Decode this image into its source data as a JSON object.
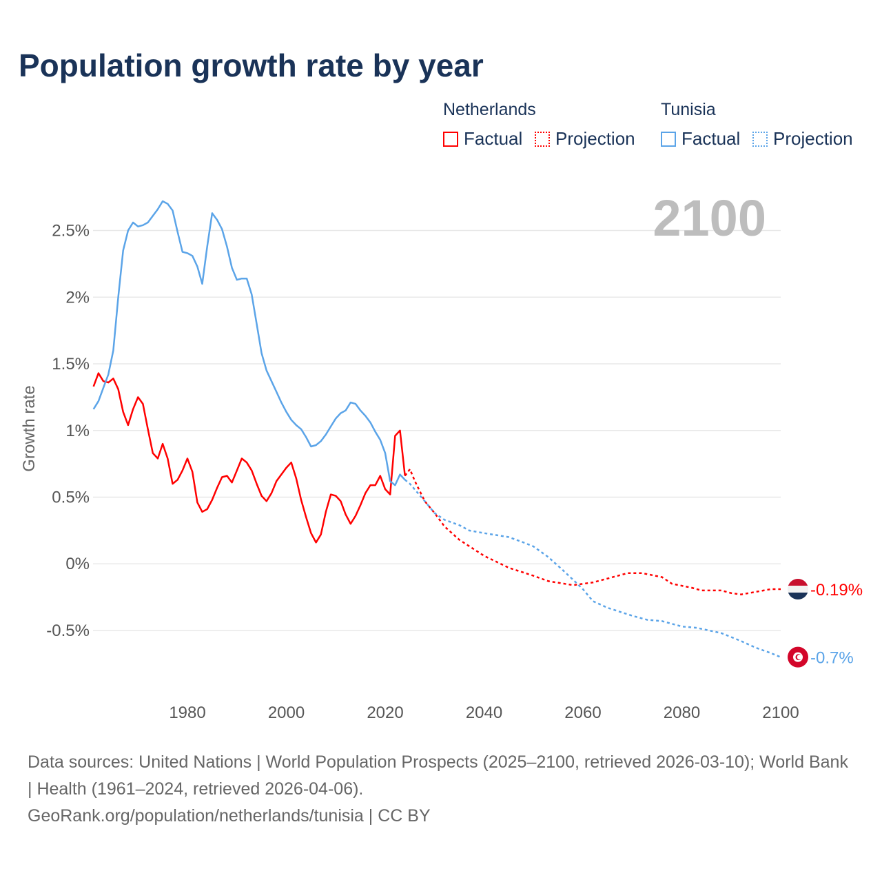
{
  "title": "Population growth rate by year",
  "legend": {
    "groups": [
      {
        "country": "Netherlands",
        "factual_label": "Factual",
        "projection_label": "Projection",
        "color": "#ff0000"
      },
      {
        "country": "Tunisia",
        "factual_label": "Factual",
        "projection_label": "Projection",
        "color": "#5ba4e8"
      }
    ]
  },
  "year_display": "2100",
  "footer": {
    "sources": "Data sources: United Nations | World Population Prospects (2025–2100, retrieved 2026-03-10); World Bank | Health (1961–2024, retrieved 2026-04-06).",
    "credit": "GeoRank.org/population/netherlands/tunisia | CC BY"
  },
  "chart_data": {
    "type": "line",
    "title": "Population growth rate by year",
    "xlabel": "",
    "ylabel": "Growth rate",
    "xlim": [
      1961,
      2100
    ],
    "ylim": [
      -0.8,
      2.8
    ],
    "x_ticks": [
      1980,
      2000,
      2020,
      2040,
      2060,
      2080,
      2100
    ],
    "y_ticks": [
      {
        "value": 2.5,
        "label": "2.5%"
      },
      {
        "value": 2,
        "label": "2%"
      },
      {
        "value": 1.5,
        "label": "1.5%"
      },
      {
        "value": 1,
        "label": "1%"
      },
      {
        "value": 0.5,
        "label": "0.5%"
      },
      {
        "value": 0,
        "label": "0%"
      },
      {
        "value": -0.5,
        "label": "-0.5%"
      }
    ],
    "grid": true,
    "legend_position": "top-right",
    "series": [
      {
        "name": "Netherlands",
        "color": "#ff0000",
        "end_label": "-0.19%",
        "factual": {
          "x": [
            1961,
            1962,
            1963,
            1964,
            1965,
            1966,
            1967,
            1968,
            1969,
            1970,
            1971,
            1972,
            1973,
            1974,
            1975,
            1976,
            1977,
            1978,
            1979,
            1980,
            1981,
            1982,
            1983,
            1984,
            1985,
            1986,
            1987,
            1988,
            1989,
            1990,
            1991,
            1992,
            1993,
            1994,
            1995,
            1996,
            1997,
            1998,
            1999,
            2000,
            2001,
            2002,
            2003,
            2004,
            2005,
            2006,
            2007,
            2008,
            2009,
            2010,
            2011,
            2012,
            2013,
            2014,
            2015,
            2016,
            2017,
            2018,
            2019,
            2020,
            2021,
            2022,
            2023,
            2024
          ],
          "y": [
            1.33,
            1.43,
            1.37,
            1.36,
            1.39,
            1.31,
            1.14,
            1.04,
            1.16,
            1.25,
            1.2,
            1.01,
            0.83,
            0.79,
            0.9,
            0.79,
            0.6,
            0.63,
            0.7,
            0.79,
            0.69,
            0.46,
            0.39,
            0.41,
            0.48,
            0.57,
            0.65,
            0.66,
            0.61,
            0.7,
            0.79,
            0.76,
            0.7,
            0.6,
            0.51,
            0.47,
            0.53,
            0.62,
            0.67,
            0.72,
            0.76,
            0.64,
            0.48,
            0.35,
            0.23,
            0.16,
            0.22,
            0.39,
            0.52,
            0.51,
            0.47,
            0.37,
            0.3,
            0.36,
            0.44,
            0.53,
            0.59,
            0.59,
            0.66,
            0.56,
            0.52,
            0.96,
            1.0,
            0.66
          ]
        },
        "projection": {
          "x": [
            2024,
            2025,
            2026,
            2028,
            2030,
            2032,
            2035,
            2040,
            2045,
            2050,
            2053,
            2058,
            2062,
            2066,
            2069,
            2072,
            2076,
            2078,
            2082,
            2084,
            2088,
            2090,
            2092,
            2095,
            2098,
            2100
          ],
          "y": [
            0.66,
            0.71,
            0.62,
            0.47,
            0.38,
            0.28,
            0.18,
            0.06,
            -0.03,
            -0.09,
            -0.13,
            -0.16,
            -0.14,
            -0.1,
            -0.07,
            -0.07,
            -0.1,
            -0.15,
            -0.18,
            -0.2,
            -0.2,
            -0.22,
            -0.23,
            -0.21,
            -0.19,
            -0.19
          ]
        }
      },
      {
        "name": "Tunisia",
        "color": "#5ba4e8",
        "end_label": "-0.7%",
        "factual": {
          "x": [
            1961,
            1962,
            1963,
            1964,
            1965,
            1966,
            1967,
            1968,
            1969,
            1970,
            1971,
            1972,
            1973,
            1974,
            1975,
            1976,
            1977,
            1978,
            1979,
            1980,
            1981,
            1982,
            1983,
            1984,
            1985,
            1986,
            1987,
            1988,
            1989,
            1990,
            1991,
            1992,
            1993,
            1994,
            1995,
            1996,
            1997,
            1998,
            1999,
            2000,
            2001,
            2002,
            2003,
            2004,
            2005,
            2006,
            2007,
            2008,
            2009,
            2010,
            2011,
            2012,
            2013,
            2014,
            2015,
            2016,
            2017,
            2018,
            2019,
            2020,
            2021,
            2022,
            2023,
            2024
          ],
          "y": [
            1.16,
            1.22,
            1.32,
            1.42,
            1.6,
            2.0,
            2.35,
            2.5,
            2.56,
            2.53,
            2.54,
            2.56,
            2.61,
            2.66,
            2.72,
            2.7,
            2.65,
            2.49,
            2.34,
            2.33,
            2.31,
            2.23,
            2.1,
            2.38,
            2.63,
            2.58,
            2.51,
            2.38,
            2.22,
            2.13,
            2.14,
            2.14,
            2.02,
            1.8,
            1.58,
            1.45,
            1.37,
            1.29,
            1.21,
            1.14,
            1.08,
            1.04,
            1.01,
            0.95,
            0.88,
            0.89,
            0.92,
            0.97,
            1.03,
            1.09,
            1.13,
            1.15,
            1.21,
            1.2,
            1.15,
            1.11,
            1.06,
            0.99,
            0.93,
            0.83,
            0.62,
            0.59,
            0.67,
            0.63
          ]
        },
        "projection": {
          "x": [
            2024,
            2025,
            2028,
            2030,
            2032,
            2035,
            2037,
            2040,
            2045,
            2048,
            2050,
            2053,
            2056,
            2058,
            2060,
            2062,
            2065,
            2070,
            2073,
            2076,
            2080,
            2083,
            2088,
            2092,
            2095,
            2098,
            2100
          ],
          "y": [
            0.63,
            0.6,
            0.47,
            0.38,
            0.33,
            0.29,
            0.25,
            0.23,
            0.2,
            0.16,
            0.13,
            0.05,
            -0.05,
            -0.12,
            -0.19,
            -0.28,
            -0.33,
            -0.39,
            -0.42,
            -0.43,
            -0.47,
            -0.48,
            -0.52,
            -0.58,
            -0.63,
            -0.67,
            -0.7
          ]
        }
      }
    ]
  }
}
